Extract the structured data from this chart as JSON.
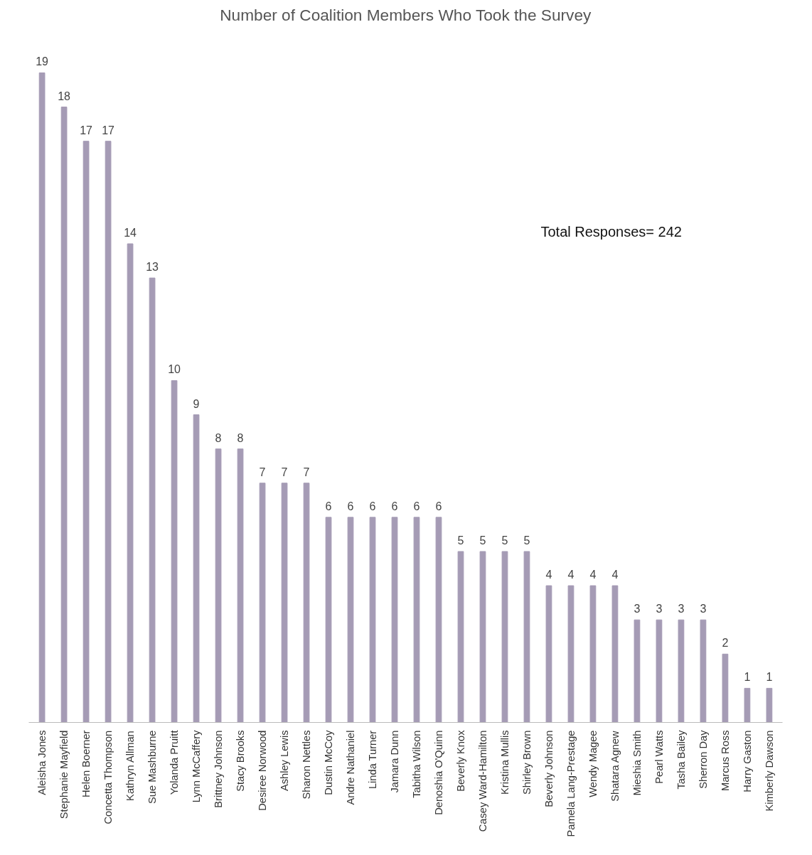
{
  "chart_data": {
    "type": "bar",
    "title": "Number of Coalition Members Who Took the Survey",
    "categories": [
      "Aleisha Jones",
      "Stephanie Mayfield",
      "Helen Boerner",
      "Concetta Thompson",
      "Kathryn Allman",
      "Sue Mashburne",
      "Yolanda Pruitt",
      "Lynn McCaffery",
      "Brittney Johnson",
      "Stacy Brooks",
      "Desiree Norwood",
      "Ashley Lewis",
      "Sharon Nettles",
      "Dustin McCoy",
      "Andre Nathaniel",
      "Linda Turner",
      "Jamara Dunn",
      "Tabitha Wilson",
      "Denoshia O'Quinn",
      "Beverly Knox",
      "Casey Ward-Hamilton",
      "Kristina Mullis",
      "Shirley Brown",
      "Beverly Johnson",
      "Pamela Lang-Prestage",
      "Wendy Magee",
      "Shatara Agnew",
      "Mieshia Smith",
      "Pearl Watts",
      "Tasha Bailey",
      "Sherron Day",
      "Marcus Ross",
      "Harry Gaston",
      "Kimberly Dawson"
    ],
    "values": [
      19,
      18,
      17,
      17,
      14,
      13,
      10,
      9,
      8,
      8,
      7,
      7,
      7,
      6,
      6,
      6,
      6,
      6,
      6,
      5,
      5,
      5,
      5,
      4,
      4,
      4,
      4,
      3,
      3,
      3,
      3,
      2,
      1,
      1
    ],
    "color": "#a59bb5",
    "data_labels": true,
    "grid": false,
    "tick_labels": "x",
    "annotations": [
      "Total Responses= 242"
    ]
  }
}
